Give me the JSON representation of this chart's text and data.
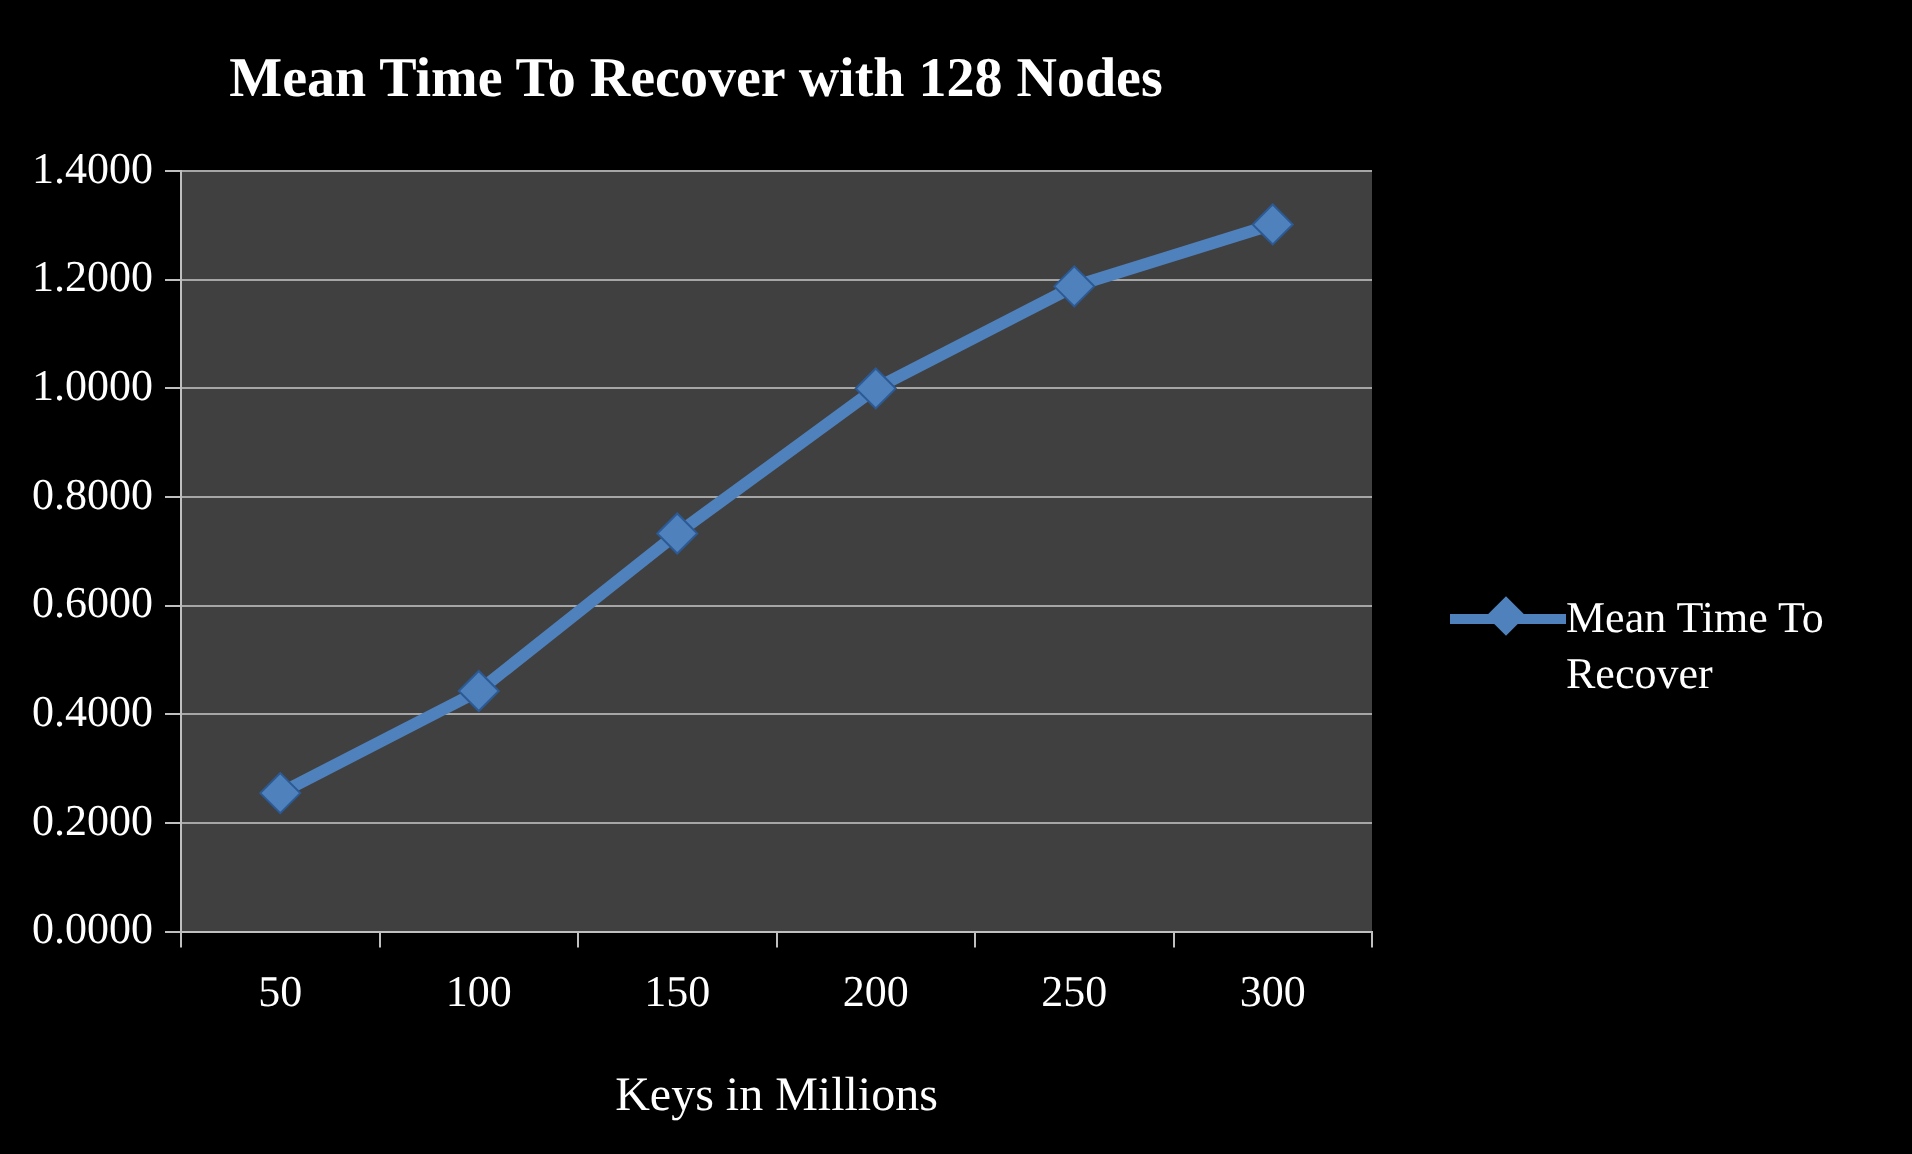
{
  "chart_data": {
    "type": "line",
    "title": "Mean Time To Recover with 128 Nodes",
    "xlabel": "Keys in Millions",
    "categories": [
      "50",
      "100",
      "150",
      "200",
      "250",
      "300"
    ],
    "series": [
      {
        "name": "Mean Time To Recover",
        "color": "#4f81bd",
        "values": [
          0.255,
          0.443,
          0.733,
          1.0,
          1.188,
          1.302
        ]
      }
    ],
    "ylim": [
      0,
      1.4
    ],
    "yticks": [
      {
        "value": 0,
        "label": "0.0000"
      },
      {
        "value": 0.2,
        "label": "0.2000"
      },
      {
        "value": 0.4,
        "label": "0.4000"
      },
      {
        "value": 0.6,
        "label": "0.6000"
      },
      {
        "value": 0.8,
        "label": "0.8000"
      },
      {
        "value": 1.0,
        "label": "1.0000"
      },
      {
        "value": 1.2,
        "label": "1.2000"
      },
      {
        "value": 1.4,
        "label": "1.4000"
      }
    ],
    "grid": "y",
    "legend": "right",
    "marker": "diamond",
    "line_style": "solid"
  }
}
